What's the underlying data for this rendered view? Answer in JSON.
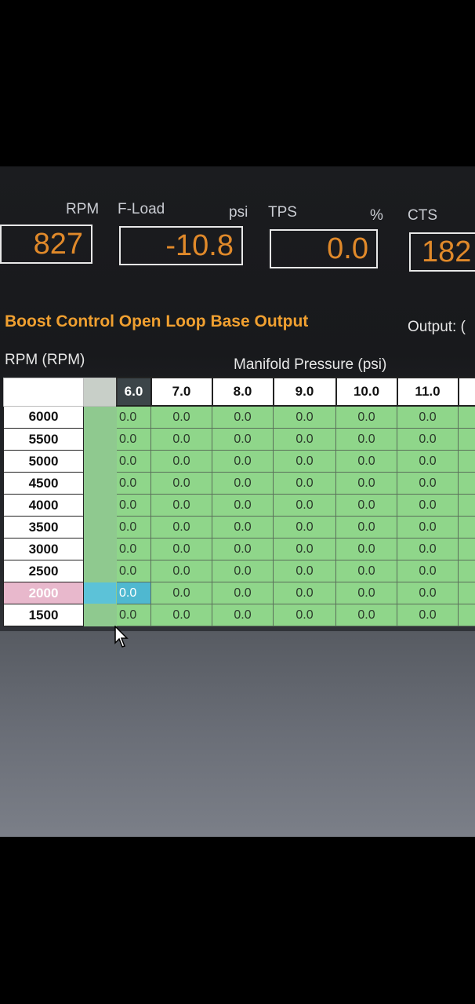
{
  "gauges": [
    {
      "label": "RPM",
      "unit": "",
      "value": "827"
    },
    {
      "label": "F-Load",
      "unit": "psi",
      "value": "-10.8"
    },
    {
      "label": "TPS",
      "unit": "%",
      "value": "0.0"
    },
    {
      "label": "CTS",
      "unit": "",
      "value": "182"
    }
  ],
  "table": {
    "title": "Boost Control Open Loop Base Output",
    "output_label": "Output: (",
    "row_axis": "RPM (RPM)",
    "col_axis": "Manifold Pressure (psi)",
    "columns": [
      "6.0",
      "7.0",
      "8.0",
      "9.0",
      "10.0",
      "11.0"
    ],
    "rows": [
      "6000",
      "5500",
      "5000",
      "4500",
      "4000",
      "3500",
      "3000",
      "2500",
      "2000",
      "1500"
    ],
    "cell_value": "0.0",
    "highlight_row": "2000"
  },
  "colors": {
    "accent": "#f0a030",
    "gauge_value": "#e0892a",
    "cell": "#8fd68a",
    "active": "#4fb8d0",
    "highlight_row": "#e8b8cc"
  }
}
